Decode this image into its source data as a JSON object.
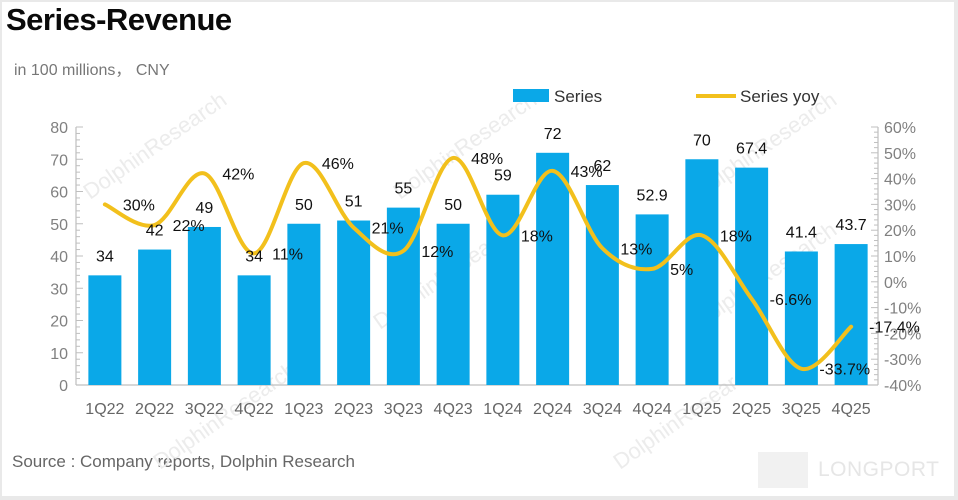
{
  "title": "Series-Revenue",
  "subtitle": "in 100 millions， CNY",
  "source": "Source : Company reports, Dolphin Research",
  "watermark": "DolphinResearch",
  "logo": "LONGPORT",
  "colors": {
    "bar": "#0aa8e8",
    "line": "#f2c01c",
    "axis": "#bfbfbf",
    "tick_text": "#808080"
  },
  "chart_data": {
    "type": "bar",
    "title": "Series-Revenue",
    "subtitle": "in 100 millions， CNY",
    "categories": [
      "1Q22",
      "2Q22",
      "3Q22",
      "4Q22",
      "1Q23",
      "2Q23",
      "3Q23",
      "4Q23",
      "1Q24",
      "2Q24",
      "3Q24",
      "4Q24",
      "1Q25",
      "2Q25",
      "3Q25",
      "4Q25"
    ],
    "series": [
      {
        "name": "Series",
        "type": "bar",
        "axis": "left",
        "values": [
          34,
          42,
          49,
          34,
          50,
          51,
          55,
          50,
          59,
          72,
          62,
          52.9,
          70,
          67.4,
          41.4,
          43.7
        ],
        "labels": [
          "34",
          "42",
          "49",
          "34",
          "50",
          "51",
          "55",
          "50",
          "59",
          "72",
          "62",
          "52.9",
          "70",
          "67.4",
          "41.4",
          "43.7"
        ]
      },
      {
        "name": "Series yoy",
        "type": "line",
        "axis": "right",
        "smooth": true,
        "values": [
          30,
          22,
          42,
          11,
          46,
          21,
          12,
          48,
          18,
          43,
          13,
          5,
          18,
          -6.6,
          -33.7,
          -17.4
        ],
        "labels": [
          "30%",
          "22%",
          "42%",
          "11%",
          "46%",
          "21%",
          "12%",
          "48%",
          "18%",
          "43%",
          "13%",
          "5%",
          "18%",
          "-6.6%",
          "-33.7%",
          "-17.4%"
        ]
      }
    ],
    "left_axis": {
      "min": 0,
      "max": 80,
      "step": 10,
      "ticks": [
        "0",
        "10",
        "20",
        "30",
        "40",
        "50",
        "60",
        "70",
        "80"
      ]
    },
    "right_axis": {
      "min": -40,
      "max": 60,
      "step": 10,
      "ticks": [
        "-40%",
        "-30%",
        "-20%",
        "-10%",
        "0%",
        "10%",
        "20%",
        "30%",
        "40%",
        "50%",
        "60%"
      ]
    },
    "xlabel": "",
    "ylabel": "",
    "grid": false,
    "legend": {
      "position": "top-right",
      "entries": [
        "Series",
        "Series yoy"
      ]
    }
  }
}
